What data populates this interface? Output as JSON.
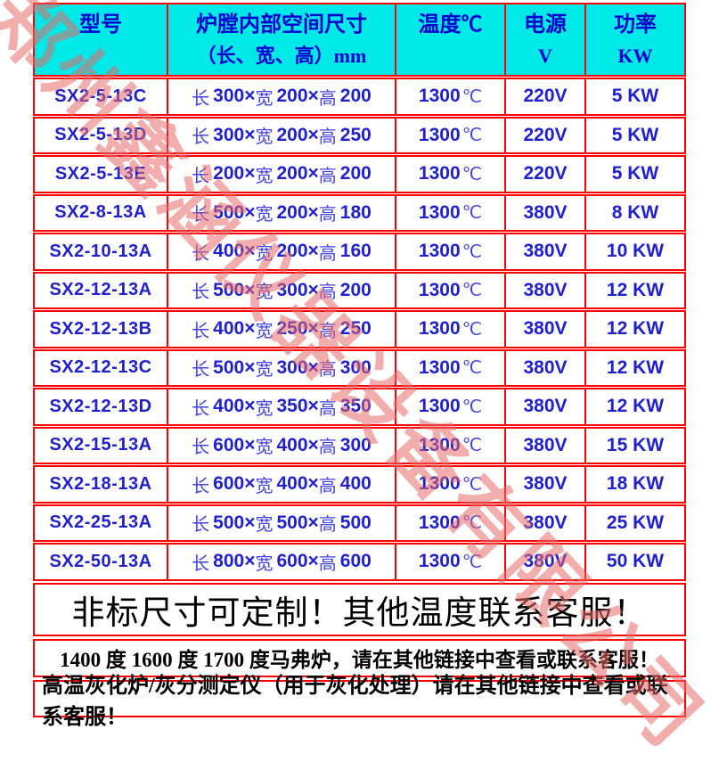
{
  "company_watermark": "郑州鑫涵仪器设备有限公司",
  "colors": {
    "header_bg": "#00e8e8",
    "grid_border": "#ff0000",
    "text_blue": "#2020cc",
    "text_blue_light": "#4343dd",
    "header_text": "#0000cf",
    "watermark": "#e76969",
    "notice_text": "#000000"
  },
  "table": {
    "header": [
      {
        "line1": "型号",
        "line2": ""
      },
      {
        "line1": "炉膛内部空间尺寸",
        "line2": "（长、宽、高）mm"
      },
      {
        "line1": "温度℃",
        "line2": ""
      },
      {
        "line1": "电源",
        "line2": "V"
      },
      {
        "line1": "功率",
        "line2": "KW"
      }
    ],
    "dim_labels": {
      "length": "长",
      "width": "宽",
      "height": "高",
      "sep": "×"
    },
    "rows": [
      {
        "model": "SX2-5-13C",
        "length": "300",
        "width": "200",
        "height": "200",
        "temp": "1300",
        "temp_unit": "℃",
        "voltage": "220V",
        "power": "5 KW"
      },
      {
        "model": "SX2-5-13D",
        "length": "300",
        "width": "200",
        "height": "250",
        "temp": "1300",
        "temp_unit": "℃",
        "voltage": "220V",
        "power": "5 KW"
      },
      {
        "model": "SX2-5-13E",
        "length": "200",
        "width": "200",
        "height": "200",
        "temp": "1300",
        "temp_unit": "℃",
        "voltage": "220V",
        "power": "5 KW"
      },
      {
        "model": "SX2-8-13A",
        "length": "500",
        "width": "200",
        "height": "180",
        "temp": "1300",
        "temp_unit": "℃",
        "voltage": "380V",
        "power": "8 KW"
      },
      {
        "model": "SX2-10-13A",
        "length": "400",
        "width": "200",
        "height": "160",
        "temp": "1300",
        "temp_unit": "℃",
        "voltage": "380V",
        "power": "10 KW"
      },
      {
        "model": "SX2-12-13A",
        "length": "500",
        "width": "300",
        "height": "200",
        "temp": "1300",
        "temp_unit": "℃",
        "voltage": "380V",
        "power": "12 KW"
      },
      {
        "model": "SX2-12-13B",
        "length": "400",
        "width": "250",
        "height": "250",
        "temp": "1300",
        "temp_unit": "℃",
        "voltage": "380V",
        "power": "12 KW"
      },
      {
        "model": "SX2-12-13C",
        "length": "500",
        "width": "300",
        "height": "300",
        "temp": "1300",
        "temp_unit": "℃",
        "voltage": "380V",
        "power": "12 KW"
      },
      {
        "model": "SX2-12-13D",
        "length": "400",
        "width": "350",
        "height": "350",
        "temp": "1300",
        "temp_unit": "℃",
        "voltage": "380V",
        "power": "12 KW"
      },
      {
        "model": "SX2-15-13A",
        "length": "600",
        "width": "400",
        "height": "300",
        "temp": "1300",
        "temp_unit": "℃",
        "voltage": "380V",
        "power": "15 KW"
      },
      {
        "model": "SX2-18-13A",
        "length": "600",
        "width": "400",
        "height": "400",
        "temp": "1300",
        "temp_unit": "℃",
        "voltage": "380V",
        "power": "18 KW"
      },
      {
        "model": "SX2-25-13A",
        "length": "500",
        "width": "500",
        "height": "500",
        "temp": "1300",
        "temp_unit": "℃",
        "voltage": "380V",
        "power": "25 KW"
      },
      {
        "model": "SX2-50-13A",
        "length": "800",
        "width": "600",
        "height": "600",
        "temp": "1300",
        "temp_unit": "℃",
        "voltage": "380V",
        "power": "50 KW"
      }
    ]
  },
  "notices": [
    {
      "text": "非标尺寸可定制！其他温度联系客服！"
    },
    {
      "text": "1400 度 1600 度 1700 度马弗炉，请在其他链接中查看或联系客服！"
    },
    {
      "text": "高温灰化炉/灰分测定仪（用于灰化处理）请在其他链接中查看或联系客服！"
    }
  ]
}
